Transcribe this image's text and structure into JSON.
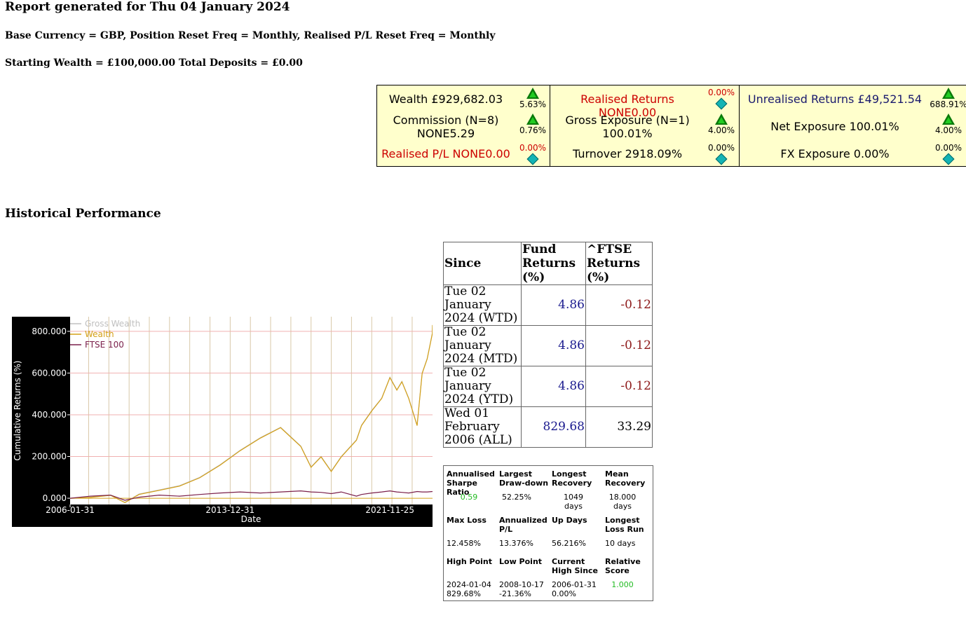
{
  "report": {
    "title": "Report generated for Thu 04 January 2024",
    "settings": "Base Currency = GBP, Position Reset Freq = Monthly, Realised P/L Reset Freq = Monthly",
    "starting": "Starting Wealth = £100,000.00 Total Deposits = £0.00"
  },
  "summary": {
    "wealth": {
      "label": "Wealth £929,682.03",
      "pct": "5.63%",
      "icon": "up-arrow-icon"
    },
    "commission": {
      "label1": "Commission (N=8)",
      "label2": "NONE5.29",
      "pct": "0.76%",
      "icon": "up-arrow-icon"
    },
    "realised_pl": {
      "label": "Realised P/L NONE0.00",
      "pct": "0.00%",
      "icon": "diamond-icon"
    },
    "realised_returns": {
      "label": "Realised Returns NONE0.00",
      "pct": "0.00%",
      "icon": "diamond-icon"
    },
    "gross_exposure": {
      "label1": "Gross Exposure (N=1)",
      "label2": "100.01%",
      "pct": "4.00%",
      "icon": "up-arrow-icon"
    },
    "turnover": {
      "label": "Turnover 2918.09%",
      "pct": "0.00%",
      "icon": "diamond-icon"
    },
    "unrealised_returns": {
      "label": "Unrealised Returns £49,521.54",
      "pct": "688.91%",
      "icon": "up-arrow-icon"
    },
    "net_exposure": {
      "label": "Net Exposure 100.01%",
      "pct": "4.00%",
      "icon": "up-arrow-icon"
    },
    "fx_exposure": {
      "label": "FX Exposure 0.00%",
      "pct": "0.00%",
      "icon": "diamond-icon"
    },
    "colors": {
      "background": "#ffffcc",
      "red": "#cc0000",
      "navy": "#1a1a6e",
      "up": "#0a7a0a",
      "flat": "#14b4b4"
    }
  },
  "historical": {
    "heading": "Historical Performance",
    "table": {
      "headers": [
        "Since",
        "Fund Returns (%)",
        "^FTSE Returns (%)"
      ],
      "rows": [
        {
          "since": "Tue 02 January 2024 (WTD)",
          "fund": "4.86",
          "ftse": "-0.12"
        },
        {
          "since": "Tue 02 January 2024 (MTD)",
          "fund": "4.86",
          "ftse": "-0.12"
        },
        {
          "since": "Tue 02 January 2024 (YTD)",
          "fund": "4.86",
          "ftse": "-0.12"
        },
        {
          "since": "Wed 01 February 2006 (ALL)",
          "fund": "829.68",
          "ftse": "33.29"
        }
      ]
    },
    "stats": [
      {
        "label": "Annualised Sharpe Ratio",
        "value": "0.59"
      },
      {
        "label": "Largest Draw-down",
        "value": "52.25%"
      },
      {
        "label": "Longest Recovery",
        "value": "1049 days"
      },
      {
        "label": "Mean Recovery",
        "value": "18.000 days"
      },
      {
        "label": "Max Loss",
        "value": "12.458%"
      },
      {
        "label": "Annualized P/L",
        "value": "13.376%"
      },
      {
        "label": "Up Days",
        "value": "56.216%"
      },
      {
        "label": "Longest Loss Run",
        "value": "10 days"
      },
      {
        "label": "High Point",
        "value": "2024-01-04 829.68%"
      },
      {
        "label": "Low Point",
        "value": "2008-10-17 -21.36%"
      },
      {
        "label": "Current High Since",
        "value": "2006-01-31 0.00%"
      },
      {
        "label": "Relative Score",
        "value": "1.000"
      }
    ]
  },
  "chart_data": {
    "type": "line",
    "xlabel": "Date",
    "ylabel": "Cumulative Returns (%)",
    "x_ticks": [
      "2006-01-31",
      "2013-12-31",
      "2021-11-25"
    ],
    "y_ticks": [
      "0.000",
      "200.000",
      "400.000",
      "600.000",
      "800.000"
    ],
    "xlim": [
      "2006-01-31",
      "2024-01-04"
    ],
    "ylim": [
      -30,
      870
    ],
    "grid": true,
    "legend_position": "top-left",
    "x": [
      "2006-01-31",
      "2007-01-31",
      "2008-01-31",
      "2008-10-17",
      "2009-06-30",
      "2010-06-30",
      "2011-06-30",
      "2012-06-30",
      "2013-06-30",
      "2014-06-30",
      "2015-06-30",
      "2016-06-30",
      "2017-06-30",
      "2017-12-31",
      "2018-06-30",
      "2018-12-31",
      "2019-06-30",
      "2020-03-31",
      "2020-06-30",
      "2020-12-31",
      "2021-06-30",
      "2021-11-25",
      "2022-03-31",
      "2022-06-30",
      "2022-10-31",
      "2023-03-31",
      "2023-06-30",
      "2023-09-30",
      "2023-12-31",
      "2024-01-04"
    ],
    "series": [
      {
        "name": "Gross Wealth",
        "color": "#c0c0c0",
        "values": [
          0,
          5,
          15,
          -20,
          20,
          40,
          60,
          100,
          160,
          230,
          290,
          340,
          250,
          150,
          200,
          130,
          200,
          280,
          350,
          420,
          480,
          580,
          520,
          560,
          480,
          350,
          600,
          670,
          790,
          830
        ]
      },
      {
        "name": "Wealth",
        "color": "#d4a017",
        "values": [
          0,
          4,
          14,
          -21,
          18,
          38,
          58,
          98,
          158,
          228,
          288,
          338,
          248,
          148,
          198,
          128,
          198,
          278,
          348,
          418,
          478,
          578,
          518,
          558,
          478,
          348,
          598,
          668,
          788,
          830
        ]
      },
      {
        "name": "FTSE 100",
        "color": "#7a1f4a",
        "values": [
          0,
          10,
          15,
          -10,
          5,
          15,
          10,
          18,
          25,
          30,
          25,
          30,
          35,
          30,
          28,
          22,
          30,
          10,
          18,
          25,
          30,
          35,
          30,
          28,
          25,
          32,
          30,
          30,
          32,
          33
        ]
      }
    ]
  }
}
